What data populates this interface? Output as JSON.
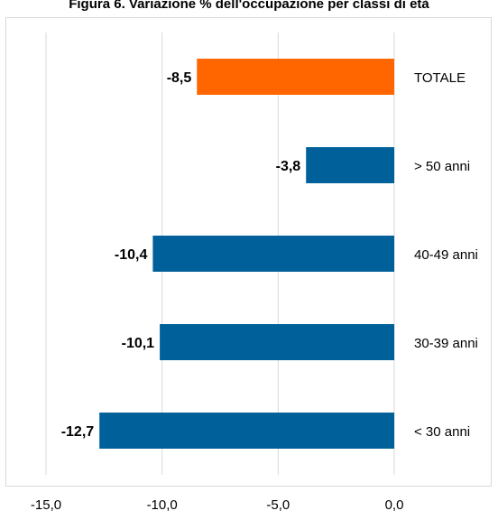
{
  "chart_data": {
    "type": "bar",
    "orientation": "horizontal",
    "title": "Figura 6. Variazione % dell'occupazione per classi di età",
    "categories": [
      "TOTALE",
      "> 50 anni",
      "40-49 anni",
      "30-39 anni",
      "< 30 anni"
    ],
    "values": [
      -8.5,
      -3.8,
      -10.4,
      -10.1,
      -12.7
    ],
    "data_labels": [
      "-8,5",
      "-3,8",
      "-10,4",
      "-10,1",
      "-12,7"
    ],
    "bar_colors": [
      "#ff6600",
      "#00609a",
      "#00609a",
      "#00609a",
      "#00609a"
    ],
    "xlim": [
      -15,
      0
    ],
    "x_ticks": [
      -15,
      -10,
      -5,
      0
    ],
    "x_tick_labels": [
      "-15,0",
      "-10,0",
      "-5,0",
      "0,0"
    ],
    "grid": "vertical",
    "xlabel": "",
    "ylabel": ""
  }
}
